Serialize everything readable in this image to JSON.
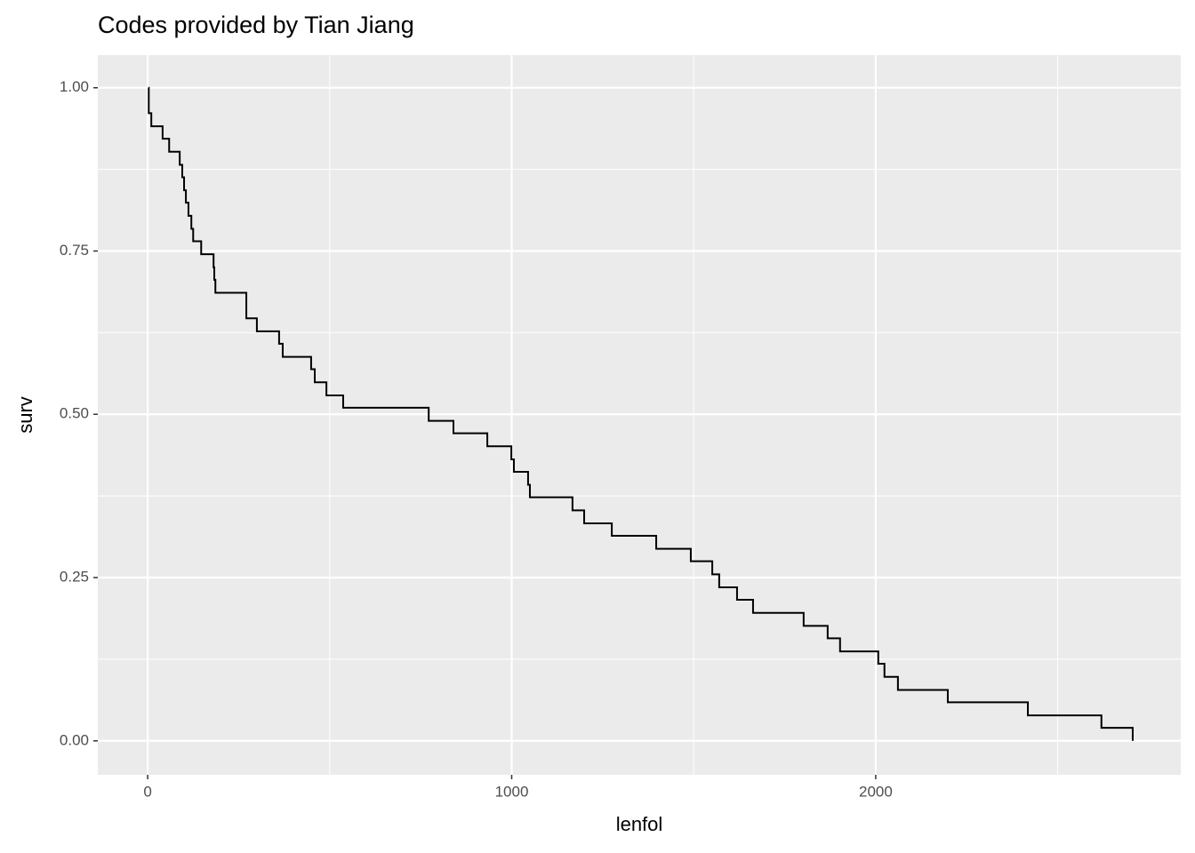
{
  "chart_data": {
    "type": "line",
    "step": "hv",
    "title": "Codes provided by Tian Jiang",
    "x_label": "lenfol",
    "y_label": "surv",
    "xlim": [
      -137,
      2838
    ],
    "ylim": [
      -0.052,
      1.05
    ],
    "xticks": [
      0,
      1000,
      2000
    ],
    "xminor": [
      500,
      1500,
      2500
    ],
    "yticks": [
      {
        "value": 0,
        "label": "0.00"
      },
      {
        "value": 0.25,
        "label": "0.25"
      },
      {
        "value": 0.5,
        "label": "0.50"
      },
      {
        "value": 0.75,
        "label": "0.75"
      },
      {
        "value": 1,
        "label": "1.00"
      }
    ],
    "yminor": [
      0.125,
      0.375,
      0.625,
      0.875
    ],
    "grid": true,
    "panel_color": "#ebebeb",
    "series": [
      {
        "name": "surv",
        "color": "#000000",
        "x": [
          2,
          3,
          10,
          41,
          59,
          88,
          95,
          100,
          105,
          112,
          120,
          125,
          147,
          181,
          183,
          186,
          271,
          300,
          361,
          371,
          449,
          459,
          491,
          537,
          772,
          840,
          933,
          999,
          1006,
          1045,
          1050,
          1167,
          1199,
          1275,
          1397,
          1492,
          1551,
          1570,
          1619,
          1663,
          1802,
          1868,
          1902,
          2007,
          2024,
          2061,
          2198,
          2418,
          2620,
          2706
        ],
        "values": [
          1.0,
          0.961,
          0.941,
          0.922,
          0.902,
          0.882,
          0.863,
          0.843,
          0.824,
          0.804,
          0.784,
          0.765,
          0.745,
          0.725,
          0.706,
          0.686,
          0.647,
          0.627,
          0.608,
          0.588,
          0.569,
          0.549,
          0.529,
          0.51,
          0.49,
          0.471,
          0.451,
          0.431,
          0.412,
          0.392,
          0.373,
          0.353,
          0.333,
          0.314,
          0.294,
          0.275,
          0.255,
          0.235,
          0.216,
          0.196,
          0.176,
          0.157,
          0.137,
          0.118,
          0.098,
          0.078,
          0.059,
          0.039,
          0.02,
          0.0
        ]
      }
    ]
  }
}
